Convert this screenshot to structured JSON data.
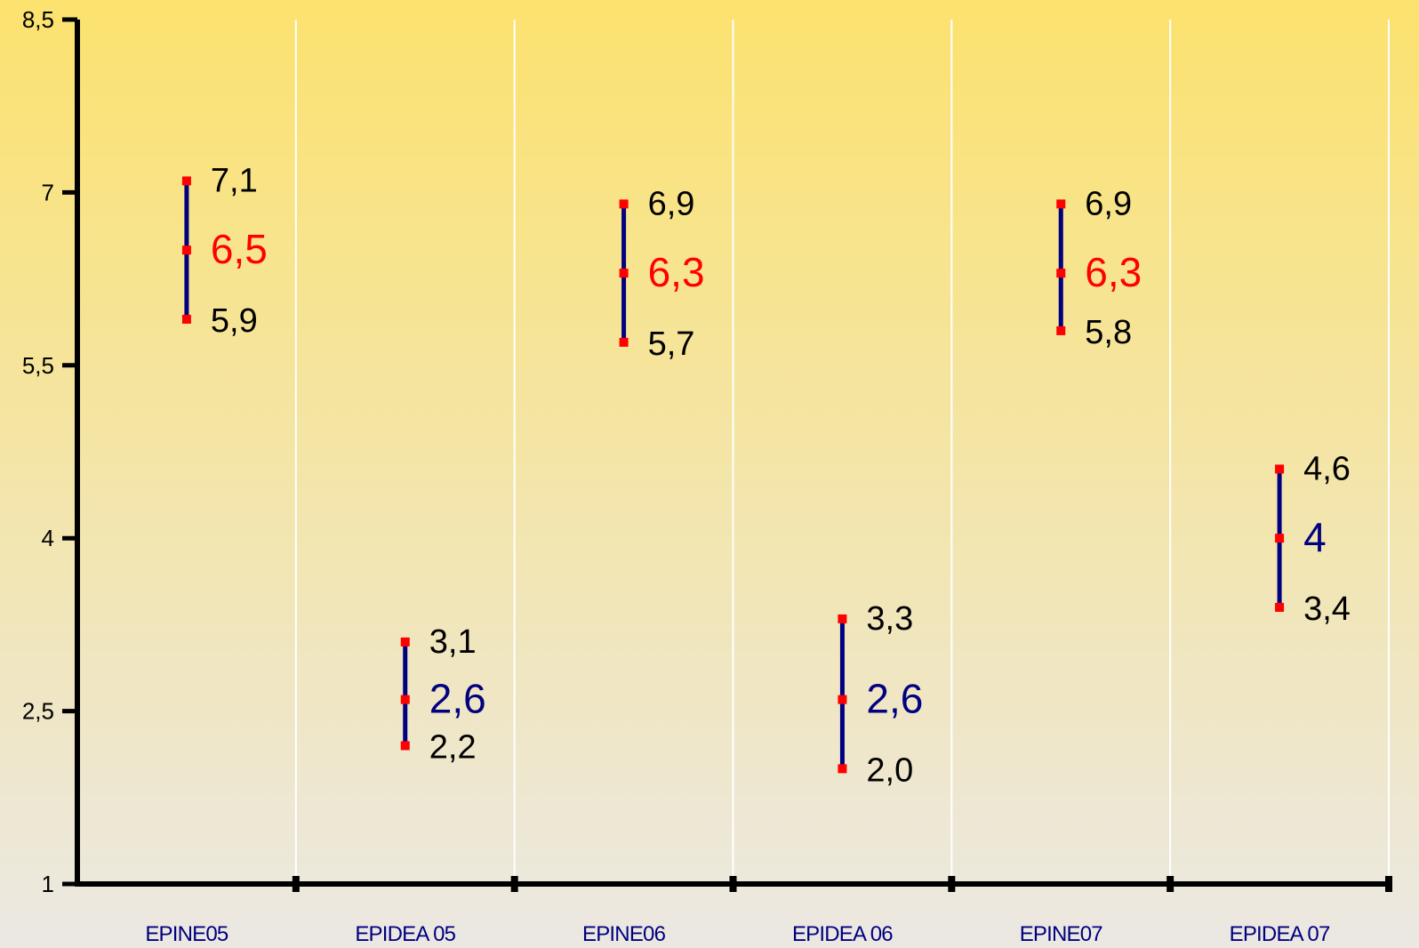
{
  "chart_data": {
    "type": "error-bar",
    "categories": [
      "EPINE05",
      "EPIDEA  05",
      "EPINE06",
      "EPIDEA 06",
      "EPINE07",
      "EPIDEA 07"
    ],
    "series": [
      {
        "values": [
          6.5,
          2.6,
          6.3,
          2.6,
          6.3,
          4
        ]
      }
    ],
    "points": [
      {
        "high": 7.1,
        "mid": 6.5,
        "low": 5.9,
        "high_label": "7,1",
        "mid_label": "6,5",
        "low_label": "5,9",
        "mid_color": "#ff0000"
      },
      {
        "high": 3.1,
        "mid": 2.6,
        "low": 2.2,
        "high_label": "3,1",
        "mid_label": "2,6",
        "low_label": "2,2",
        "mid_color": "#000080"
      },
      {
        "high": 6.9,
        "mid": 6.3,
        "low": 5.7,
        "high_label": "6,9",
        "mid_label": "6,3",
        "low_label": "5,7",
        "mid_color": "#ff0000"
      },
      {
        "high": 3.3,
        "mid": 2.6,
        "low": 2.0,
        "high_label": "3,3",
        "mid_label": "2,6",
        "low_label": "2,0",
        "mid_color": "#000080"
      },
      {
        "high": 6.9,
        "mid": 6.3,
        "low": 5.8,
        "high_label": "6,9",
        "mid_label": "6,3",
        "low_label": "5,8",
        "mid_color": "#ff0000"
      },
      {
        "high": 4.6,
        "mid": 4,
        "low": 3.4,
        "high_label": "4,6",
        "mid_label": "4",
        "low_label": "3,4",
        "mid_color": "#000080"
      }
    ],
    "y_ticks": [
      1,
      2.5,
      4,
      5.5,
      7,
      8.5
    ],
    "y_tick_labels": [
      "1",
      "2,5",
      "4",
      "5,5",
      "7",
      "8,5"
    ],
    "ylim": [
      1,
      8.5
    ],
    "title": "",
    "xlabel": "",
    "ylabel": "",
    "grid": "vertical lines between categories",
    "legend": "none",
    "colors": {
      "background_top": "#fce26e",
      "background_bottom": "#ebe8e3",
      "bar": "#000080",
      "marker": "#ff0000",
      "axis": "#000000",
      "grid": "#ffffff",
      "category_label": "#000080",
      "value_label": "#000000"
    }
  }
}
